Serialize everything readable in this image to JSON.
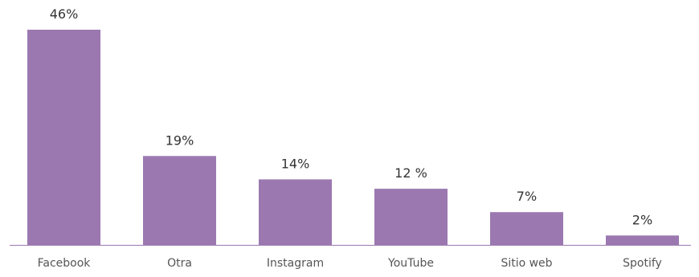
{
  "chart_data": {
    "type": "bar",
    "categories": [
      "Facebook",
      "Otra",
      "Instagram",
      "YouTube",
      "Sitio web",
      "Spotify"
    ],
    "values": [
      46,
      19,
      14,
      12,
      7,
      2
    ],
    "data_labels": [
      "46%",
      "19%",
      "14%",
      "12 %",
      "7%",
      "2%"
    ],
    "unit": "%",
    "title": "",
    "xlabel": "",
    "ylabel": "",
    "ylim": [
      0,
      46
    ],
    "grid": false,
    "legend": "none",
    "colors": {
      "bar": "#9b79b0",
      "axis": "#9b79b0",
      "label": "#333333",
      "tick": "#555555"
    }
  }
}
